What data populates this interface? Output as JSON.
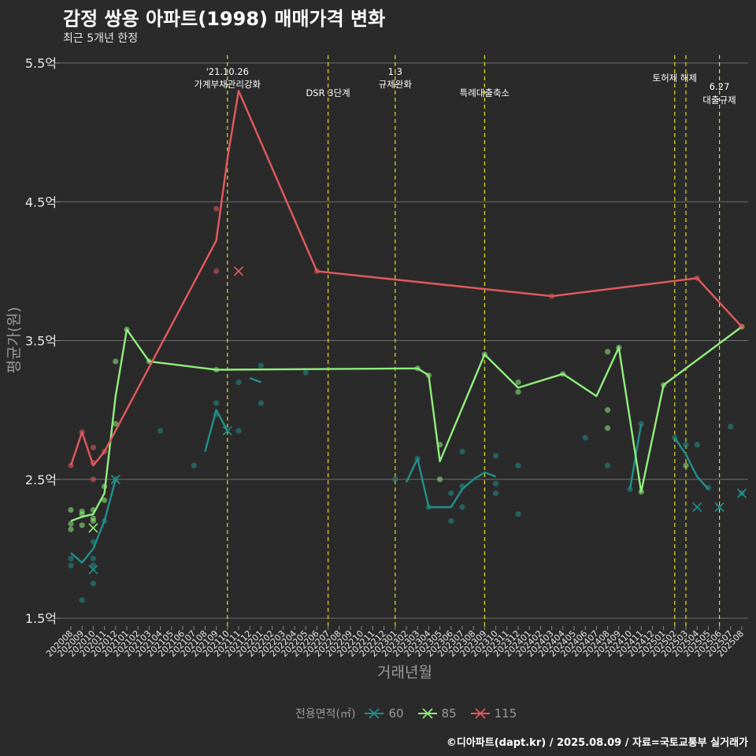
{
  "title": "감정 쌍용 아파트(1998) 매매가격 변화",
  "subtitle": "최근 5개년 한정",
  "caption": "©디아파트(dapt.kr) / 2025.08.09 / 자료=국토교통부 실거래가",
  "legend": {
    "title": "전용면적(㎡)",
    "items": [
      {
        "label": "60",
        "color": "#21908c"
      },
      {
        "label": "85",
        "color": "#90ee7e"
      },
      {
        "label": "115",
        "color": "#e25a5e"
      }
    ]
  },
  "chart_data": {
    "type": "line",
    "title": "감정 쌍용 아파트(1998) 매매가격 변화",
    "subtitle": "최근 5개년 한정",
    "xlabel": "거래년월",
    "ylabel": "평균가(원)",
    "ylim": [
      1.5,
      5.5
    ],
    "yticks": [
      1.5,
      2.5,
      3.5,
      4.5,
      5.5
    ],
    "ytick_labels": [
      "1.5억",
      "2.5억",
      "3.5억",
      "4.5억",
      "5.5억"
    ],
    "grid": true,
    "legend_position": "bottom",
    "categories": [
      "202008",
      "202009",
      "202010",
      "202011",
      "202012",
      "202101",
      "202102",
      "202103",
      "202104",
      "202105",
      "202106",
      "202107",
      "202108",
      "202109",
      "202110",
      "202111",
      "202112",
      "202201",
      "202202",
      "202203",
      "202204",
      "202205",
      "202206",
      "202207",
      "202208",
      "202209",
      "202210",
      "202211",
      "202212",
      "202301",
      "202302",
      "202303",
      "202304",
      "202305",
      "202306",
      "202307",
      "202308",
      "202309",
      "202310",
      "202311",
      "202312",
      "202401",
      "202402",
      "202403",
      "202404",
      "202405",
      "202406",
      "202407",
      "202408",
      "202409",
      "202410",
      "202411",
      "202412",
      "202501",
      "202502",
      "202503",
      "202504",
      "202505",
      "202506",
      "202507",
      "202508"
    ],
    "events": [
      {
        "x": 14.0,
        "label_lines": [
          "'21.10.26",
          "가계부채관리강화"
        ]
      },
      {
        "x": 23.0,
        "label_lines": [
          "DSR 3단계"
        ]
      },
      {
        "x": 29.0,
        "label_lines": [
          "1.3",
          "규제완화"
        ]
      },
      {
        "x": 37.0,
        "label_lines": [
          "특례대출축소"
        ]
      },
      {
        "x": 54.0,
        "label_lines": [
          "토허제 해제"
        ]
      },
      {
        "x": 55.0,
        "label_lines": []
      },
      {
        "x": 58.0,
        "label_lines": [
          "6.27",
          "대출규제"
        ]
      }
    ],
    "series": [
      {
        "name": "60",
        "color": "#21908c",
        "line": [
          [
            0,
            1.97
          ],
          [
            1,
            1.9
          ],
          [
            2,
            2.0
          ],
          [
            3,
            2.2
          ],
          [
            4,
            2.5
          ],
          [
            null,
            null
          ],
          [
            12,
            2.7
          ],
          [
            13,
            3.0
          ],
          [
            14,
            2.85
          ],
          [
            null,
            null
          ],
          [
            16,
            3.23
          ],
          [
            17,
            3.2
          ],
          [
            null,
            null
          ],
          [
            30,
            2.48
          ],
          [
            31,
            2.65
          ],
          [
            32,
            2.3
          ],
          [
            34,
            2.3
          ],
          [
            35,
            2.43
          ],
          [
            36,
            2.5
          ],
          [
            37,
            2.55
          ],
          [
            38,
            2.52
          ],
          [
            null,
            null
          ],
          [
            50,
            2.43
          ],
          [
            51,
            2.9
          ],
          [
            null,
            null
          ],
          [
            54,
            2.8
          ],
          [
            55,
            2.68
          ],
          [
            56,
            2.52
          ],
          [
            57,
            2.43
          ],
          [
            null,
            null
          ],
          [
            60,
            2.4
          ]
        ],
        "points": [
          [
            0,
            1.93
          ],
          [
            0,
            1.88
          ],
          [
            1,
            1.63
          ],
          [
            2,
            2.05
          ],
          [
            2,
            1.93
          ],
          [
            2,
            1.88
          ],
          [
            2,
            1.75
          ],
          [
            3,
            2.2
          ],
          [
            4,
            2.5
          ],
          [
            8,
            2.85
          ],
          [
            11,
            2.6
          ],
          [
            13,
            3.05
          ],
          [
            13,
            2.97
          ],
          [
            15,
            3.2
          ],
          [
            15,
            2.85
          ],
          [
            17,
            3.32
          ],
          [
            17,
            3.05
          ],
          [
            21,
            3.27
          ],
          [
            29,
            2.5
          ],
          [
            31,
            2.65
          ],
          [
            32,
            2.3
          ],
          [
            34,
            2.2
          ],
          [
            34,
            2.4
          ],
          [
            35,
            2.45
          ],
          [
            35,
            2.3
          ],
          [
            35,
            2.7
          ],
          [
            38,
            2.47
          ],
          [
            38,
            2.4
          ],
          [
            38,
            2.67
          ],
          [
            40,
            2.6
          ],
          [
            40,
            2.25
          ],
          [
            46,
            2.8
          ],
          [
            48,
            2.6
          ],
          [
            50,
            2.43
          ],
          [
            51,
            2.9
          ],
          [
            54,
            2.8
          ],
          [
            55,
            2.75
          ],
          [
            56,
            2.75
          ],
          [
            57,
            2.44
          ],
          [
            59,
            2.88
          ],
          [
            60,
            2.4
          ]
        ],
        "crosses": [
          [
            2,
            1.85
          ],
          [
            4,
            2.5
          ],
          [
            14,
            2.85
          ],
          [
            56,
            2.3
          ],
          [
            58,
            2.3
          ],
          [
            60,
            2.4
          ]
        ]
      },
      {
        "name": "85",
        "color": "#90ee7e",
        "line": [
          [
            0,
            2.2
          ],
          [
            1,
            2.23
          ],
          [
            2,
            2.25
          ],
          [
            3,
            2.4
          ],
          [
            4,
            3.1
          ],
          [
            5,
            3.58
          ],
          [
            7,
            3.35
          ],
          [
            13,
            3.29
          ],
          [
            31,
            3.3
          ],
          [
            32,
            3.25
          ],
          [
            33,
            2.63
          ],
          [
            37,
            3.4
          ],
          [
            40,
            3.16
          ],
          [
            44,
            3.26
          ],
          [
            47,
            3.1
          ],
          [
            49,
            3.45
          ],
          [
            51,
            2.41
          ],
          [
            53,
            3.18
          ],
          [
            60,
            3.6
          ]
        ],
        "points": [
          [
            0,
            2.28
          ],
          [
            0,
            2.18
          ],
          [
            0,
            2.14
          ],
          [
            1,
            2.27
          ],
          [
            1,
            2.25
          ],
          [
            1,
            2.17
          ],
          [
            2,
            2.28
          ],
          [
            2,
            2.22
          ],
          [
            2,
            2.2
          ],
          [
            3,
            2.45
          ],
          [
            3,
            2.35
          ],
          [
            4,
            3.35
          ],
          [
            4,
            2.9
          ],
          [
            5,
            3.58
          ],
          [
            7,
            3.35
          ],
          [
            13,
            3.29
          ],
          [
            31,
            3.3
          ],
          [
            32,
            3.25
          ],
          [
            33,
            2.75
          ],
          [
            33,
            2.5
          ],
          [
            37,
            3.4
          ],
          [
            40,
            3.2
          ],
          [
            40,
            3.13
          ],
          [
            44,
            3.26
          ],
          [
            48,
            3.42
          ],
          [
            48,
            3.0
          ],
          [
            48,
            2.87
          ],
          [
            49,
            3.45
          ],
          [
            51,
            2.41
          ],
          [
            53,
            3.18
          ],
          [
            55,
            2.6
          ],
          [
            60,
            3.6
          ]
        ],
        "crosses": [
          [
            2,
            2.15
          ]
        ]
      },
      {
        "name": "115",
        "color": "#e25a5e",
        "line": [
          [
            0,
            2.6
          ],
          [
            1,
            2.84
          ],
          [
            2,
            2.6
          ],
          [
            3,
            2.7
          ],
          [
            13,
            4.22
          ],
          [
            14,
            4.81
          ],
          [
            15,
            5.3
          ],
          [
            22,
            4.0
          ],
          [
            43,
            3.82
          ],
          [
            56,
            3.95
          ],
          [
            60,
            3.6
          ]
        ],
        "points": [
          [
            0,
            2.6
          ],
          [
            1,
            2.84
          ],
          [
            2,
            2.73
          ],
          [
            2,
            2.62
          ],
          [
            2,
            2.5
          ],
          [
            3,
            2.7
          ],
          [
            13,
            4.45
          ],
          [
            13,
            4.0
          ],
          [
            22,
            4.0
          ],
          [
            43,
            3.82
          ],
          [
            56,
            3.95
          ],
          [
            60,
            3.6
          ]
        ],
        "crosses": [
          [
            15,
            4.0
          ]
        ]
      }
    ]
  }
}
